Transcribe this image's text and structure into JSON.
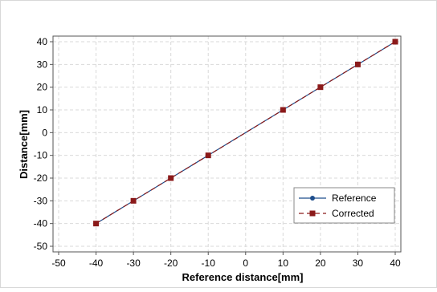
{
  "chart_data": {
    "type": "line",
    "title": "",
    "xlabel": "Reference distance[mm]",
    "ylabel": "Distance[mm]",
    "xlim": [
      -50,
      40
    ],
    "ylim": [
      -50,
      40
    ],
    "xticks": [
      -50,
      -40,
      -30,
      -20,
      -10,
      0,
      10,
      20,
      30,
      40
    ],
    "yticks": [
      -50,
      -40,
      -30,
      -20,
      -10,
      0,
      10,
      20,
      30,
      40
    ],
    "grid": true,
    "legend_position": "bottom-right",
    "x": [
      -40,
      -30,
      -20,
      -10,
      10,
      20,
      30,
      40
    ],
    "series": [
      {
        "name": "Reference",
        "values": [
          -40,
          -30,
          -20,
          -10,
          10,
          20,
          30,
          40
        ],
        "color": "#1f4e8c",
        "marker": "circle",
        "line_style": "solid"
      },
      {
        "name": "Corrected",
        "values": [
          -40,
          -30,
          -20,
          -10,
          10,
          20,
          30,
          40
        ],
        "color": "#8b1a1a",
        "marker": "square",
        "line_style": "dashed"
      }
    ]
  }
}
